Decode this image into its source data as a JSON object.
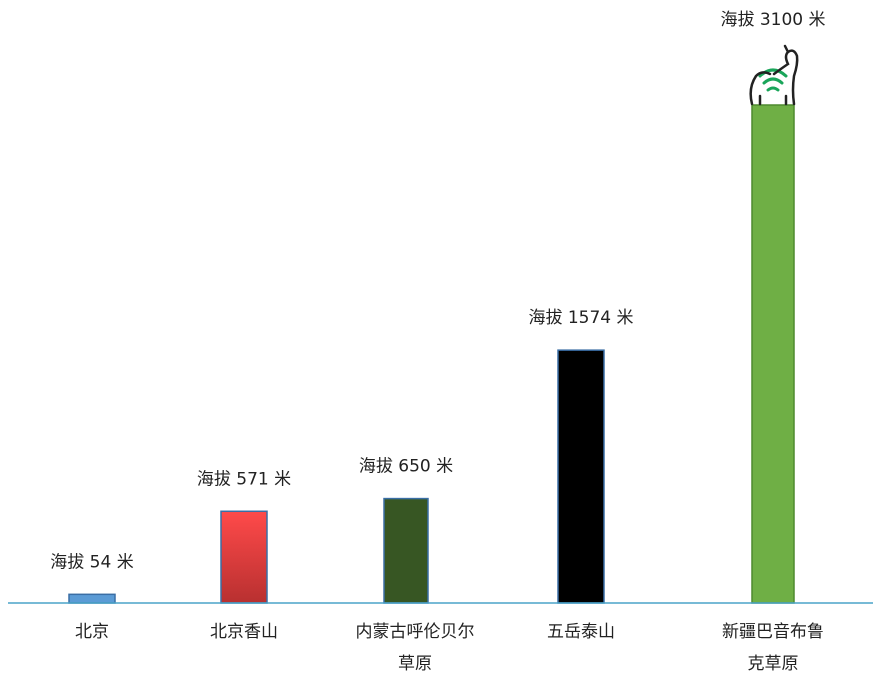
{
  "chart_data": {
    "type": "bar",
    "title": "",
    "xlabel": "",
    "ylabel": "",
    "ylim": [
      0,
      3100
    ],
    "grid": false,
    "legend": "none",
    "categories": [
      [
        "北京"
      ],
      [
        "北京香山"
      ],
      [
        "内蒙古呼伦贝尔",
        "草原"
      ],
      [
        "五岳泰山"
      ],
      [
        "新疆巴音布鲁",
        "克草原"
      ]
    ],
    "values": [
      54,
      571,
      650,
      1574,
      3100
    ],
    "value_labels": [
      "海拔 54 米",
      "海拔 571 米",
      "海拔 650 米",
      "海拔 1574 米",
      "海拔 3100 米"
    ],
    "colors": [
      "#5b9bd5",
      "#e84040",
      "#375623",
      "#000000",
      "#6faf45"
    ],
    "axis_color": "#4aa3c8",
    "icon": "cat-with-wifi-icon"
  }
}
